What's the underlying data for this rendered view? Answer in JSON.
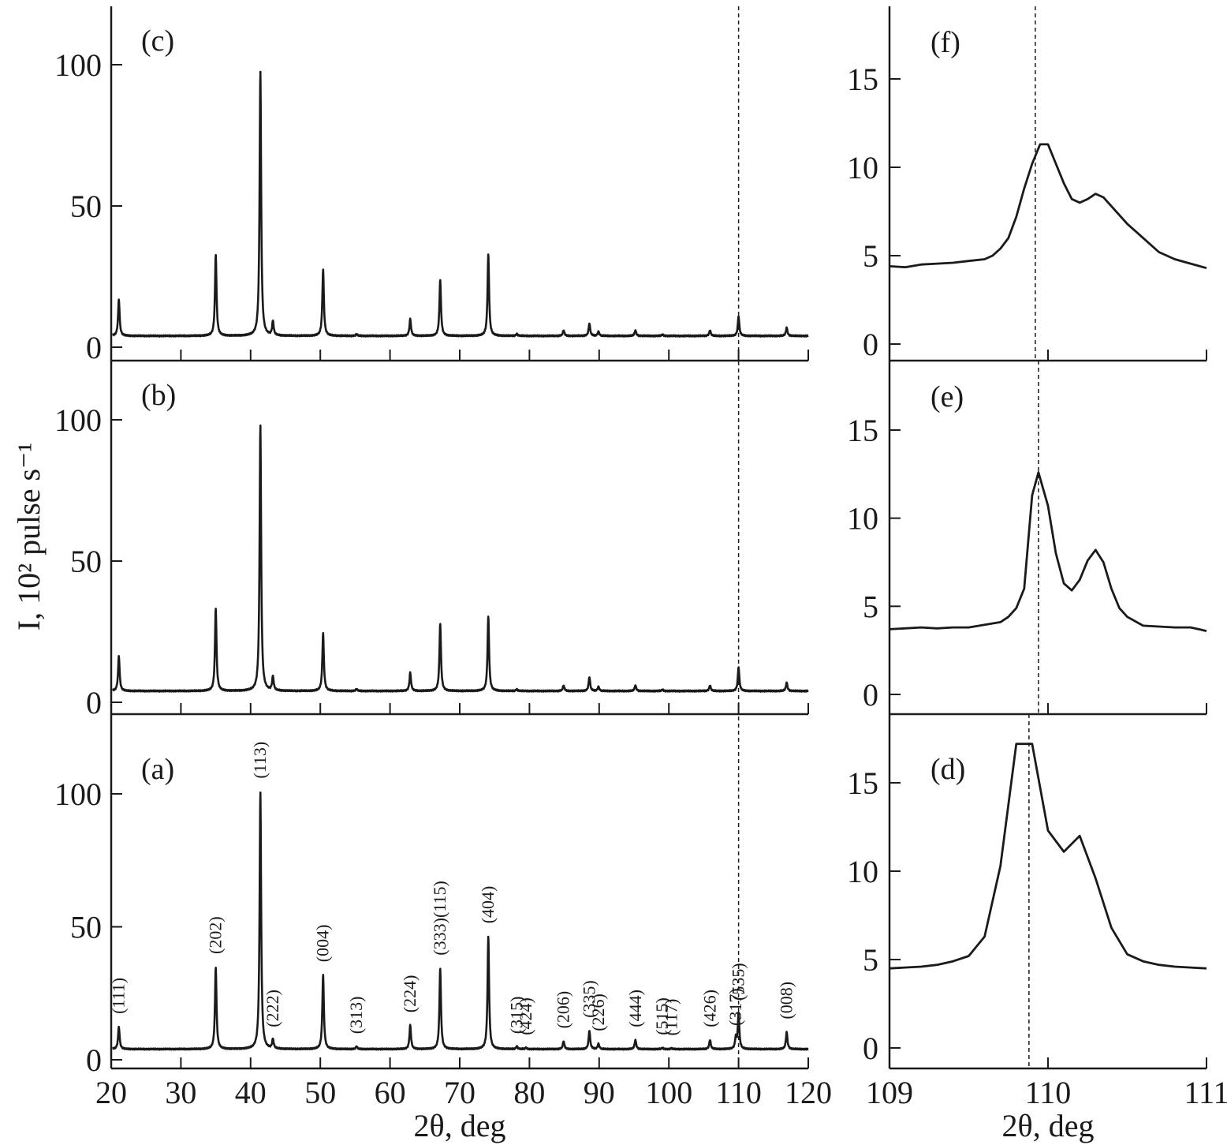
{
  "chart_data": [
    {
      "panel": "(a)",
      "type": "line",
      "xlabel": "2θ, deg",
      "ylabel": "I, 10² pulse s⁻¹",
      "xlim": [
        20,
        120
      ],
      "ylim": [
        0,
        120
      ],
      "xticks": [
        20,
        30,
        40,
        50,
        60,
        70,
        80,
        90,
        100,
        110,
        120
      ],
      "yticks": [
        0,
        50,
        100
      ],
      "reference_line_x": 110,
      "baseline": 4,
      "peaks": [
        {
          "x": 21.1,
          "y": 12.5,
          "label": "(111)"
        },
        {
          "x": 35.0,
          "y": 35,
          "label": "(202)"
        },
        {
          "x": 41.4,
          "y": 101,
          "label": "(113)"
        },
        {
          "x": 43.2,
          "y": 7.5,
          "label": "(222)"
        },
        {
          "x": 50.4,
          "y": 32,
          "label": "(004)"
        },
        {
          "x": 55.2,
          "y": 5,
          "label": "(313)"
        },
        {
          "x": 62.9,
          "y": 13,
          "label": "(224)"
        },
        {
          "x": 67.2,
          "y": 34.5,
          "label": "(333)(115)"
        },
        {
          "x": 74.1,
          "y": 46.5,
          "label": "(404)"
        },
        {
          "x": 78.2,
          "y": 5,
          "label": "(315)"
        },
        {
          "x": 79.5,
          "y": 4.5,
          "label": "(424)"
        },
        {
          "x": 84.9,
          "y": 7,
          "label": "(206)"
        },
        {
          "x": 88.6,
          "y": 11,
          "label": "(335)"
        },
        {
          "x": 89.9,
          "y": 6,
          "label": "(226)"
        },
        {
          "x": 95.2,
          "y": 7.5,
          "label": "(444)"
        },
        {
          "x": 99.1,
          "y": 4.5,
          "label": "(515)"
        },
        {
          "x": 100.4,
          "y": 4.3,
          "label": "(117)"
        },
        {
          "x": 105.9,
          "y": 7.5,
          "label": "(426)"
        },
        {
          "x": 109.6,
          "y": 8,
          "label": "(317)"
        },
        {
          "x": 110.0,
          "y": 17.5,
          "label": "(535)"
        },
        {
          "x": 116.9,
          "y": 10.5,
          "label": "(008)"
        }
      ]
    },
    {
      "panel": "(b)",
      "type": "line",
      "xlim": [
        20,
        120
      ],
      "ylim": [
        0,
        120
      ],
      "yticks": [
        0,
        50,
        100
      ],
      "reference_line_x": 110,
      "baseline": 4,
      "peaks": [
        {
          "x": 21.1,
          "y": 16.5
        },
        {
          "x": 35.0,
          "y": 33.5
        },
        {
          "x": 41.4,
          "y": 98.5
        },
        {
          "x": 43.2,
          "y": 9
        },
        {
          "x": 50.4,
          "y": 24.5
        },
        {
          "x": 55.2,
          "y": 4.7
        },
        {
          "x": 62.9,
          "y": 10.5
        },
        {
          "x": 67.2,
          "y": 28
        },
        {
          "x": 74.1,
          "y": 30.5
        },
        {
          "x": 78.2,
          "y": 4.6
        },
        {
          "x": 84.9,
          "y": 6
        },
        {
          "x": 88.6,
          "y": 9
        },
        {
          "x": 89.9,
          "y": 5.5
        },
        {
          "x": 95.2,
          "y": 6
        },
        {
          "x": 99.1,
          "y": 4.5
        },
        {
          "x": 105.9,
          "y": 6
        },
        {
          "x": 110.0,
          "y": 12.5
        },
        {
          "x": 116.9,
          "y": 7
        }
      ]
    },
    {
      "panel": "(c)",
      "type": "line",
      "xlim": [
        20,
        120
      ],
      "ylim": [
        0,
        120
      ],
      "yticks": [
        0,
        50,
        100
      ],
      "reference_line_x": 110,
      "baseline": 4,
      "peaks": [
        {
          "x": 21.1,
          "y": 17
        },
        {
          "x": 35.0,
          "y": 33
        },
        {
          "x": 41.4,
          "y": 98
        },
        {
          "x": 43.2,
          "y": 9
        },
        {
          "x": 50.4,
          "y": 27.5
        },
        {
          "x": 55.2,
          "y": 4.6
        },
        {
          "x": 62.9,
          "y": 10
        },
        {
          "x": 67.2,
          "y": 24
        },
        {
          "x": 74.1,
          "y": 33
        },
        {
          "x": 78.2,
          "y": 4.7
        },
        {
          "x": 84.9,
          "y": 6
        },
        {
          "x": 88.6,
          "y": 8.5
        },
        {
          "x": 89.9,
          "y": 5.5
        },
        {
          "x": 95.2,
          "y": 6
        },
        {
          "x": 99.1,
          "y": 4.5
        },
        {
          "x": 105.9,
          "y": 6
        },
        {
          "x": 110.0,
          "y": 11
        },
        {
          "x": 116.9,
          "y": 7
        }
      ]
    },
    {
      "panel": "(d)",
      "type": "line",
      "xlabel": "2θ, deg",
      "xlim": [
        109,
        111
      ],
      "ylim": [
        -0.5,
        17.8
      ],
      "xticks": [
        109,
        110,
        111
      ],
      "yticks": [
        0,
        5,
        10,
        15
      ],
      "reference_line_x": 109.88,
      "x": [
        109.0,
        109.2,
        109.3,
        109.4,
        109.5,
        109.6,
        109.7,
        109.8,
        109.85,
        109.9,
        110.0,
        110.1,
        110.2,
        110.3,
        110.4,
        110.5,
        110.6,
        110.7,
        110.8,
        110.9,
        111.0
      ],
      "y": [
        4.5,
        4.6,
        4.7,
        4.9,
        5.2,
        6.3,
        10.3,
        17.2,
        17.2,
        17.2,
        12.3,
        11.1,
        12.0,
        9.6,
        6.8,
        5.3,
        4.9,
        4.7,
        4.6,
        4.55,
        4.5
      ]
    },
    {
      "panel": "(e)",
      "type": "line",
      "xlim": [
        109,
        111
      ],
      "ylim": [
        -0.5,
        17.8
      ],
      "yticks": [
        0,
        5,
        10,
        15
      ],
      "reference_line_x": 109.94,
      "x": [
        109.0,
        109.2,
        109.3,
        109.4,
        109.5,
        109.6,
        109.7,
        109.75,
        109.8,
        109.85,
        109.9,
        109.94,
        110.0,
        110.05,
        110.1,
        110.15,
        110.2,
        110.25,
        110.3,
        110.35,
        110.4,
        110.45,
        110.5,
        110.6,
        110.8,
        110.9,
        111.0
      ],
      "y": [
        3.7,
        3.8,
        3.75,
        3.8,
        3.8,
        3.95,
        4.1,
        4.4,
        4.9,
        6.0,
        11.3,
        12.6,
        10.7,
        8.0,
        6.3,
        5.9,
        6.5,
        7.6,
        8.2,
        7.5,
        6.0,
        4.9,
        4.4,
        3.9,
        3.8,
        3.8,
        3.6
      ]
    },
    {
      "panel": "(f)",
      "type": "line",
      "xlim": [
        109,
        111
      ],
      "ylim": [
        -0.5,
        18.8
      ],
      "yticks": [
        0,
        5,
        10,
        15
      ],
      "reference_line_x": 109.92,
      "x": [
        109.0,
        109.1,
        109.2,
        109.3,
        109.4,
        109.5,
        109.6,
        109.65,
        109.7,
        109.75,
        109.8,
        109.85,
        109.9,
        109.95,
        110.0,
        110.05,
        110.1,
        110.15,
        110.2,
        110.25,
        110.3,
        110.35,
        110.4,
        110.5,
        110.6,
        110.7,
        110.8,
        110.9,
        111.0
      ],
      "y": [
        4.4,
        4.35,
        4.5,
        4.55,
        4.6,
        4.7,
        4.8,
        5.0,
        5.4,
        6.0,
        7.2,
        8.8,
        10.2,
        11.3,
        11.3,
        10.2,
        9.1,
        8.2,
        8.0,
        8.2,
        8.5,
        8.3,
        7.8,
        6.8,
        6.0,
        5.2,
        4.8,
        4.55,
        4.3
      ]
    }
  ]
}
